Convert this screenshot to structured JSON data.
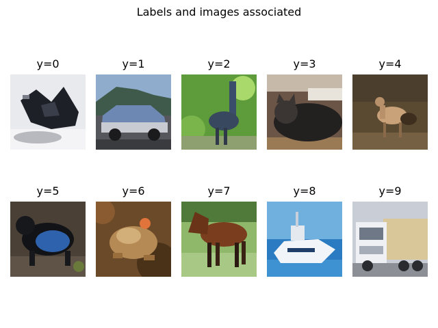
{
  "figure": {
    "title": "Labels and images associated"
  },
  "cells": [
    {
      "label": "y=0",
      "subject": "airplane"
    },
    {
      "label": "y=1",
      "subject": "automobile"
    },
    {
      "label": "y=2",
      "subject": "bird"
    },
    {
      "label": "y=3",
      "subject": "cat"
    },
    {
      "label": "y=4",
      "subject": "deer"
    },
    {
      "label": "y=5",
      "subject": "dog"
    },
    {
      "label": "y=6",
      "subject": "frog"
    },
    {
      "label": "y=7",
      "subject": "horse"
    },
    {
      "label": "y=8",
      "subject": "ship"
    },
    {
      "label": "y=9",
      "subject": "truck"
    }
  ]
}
